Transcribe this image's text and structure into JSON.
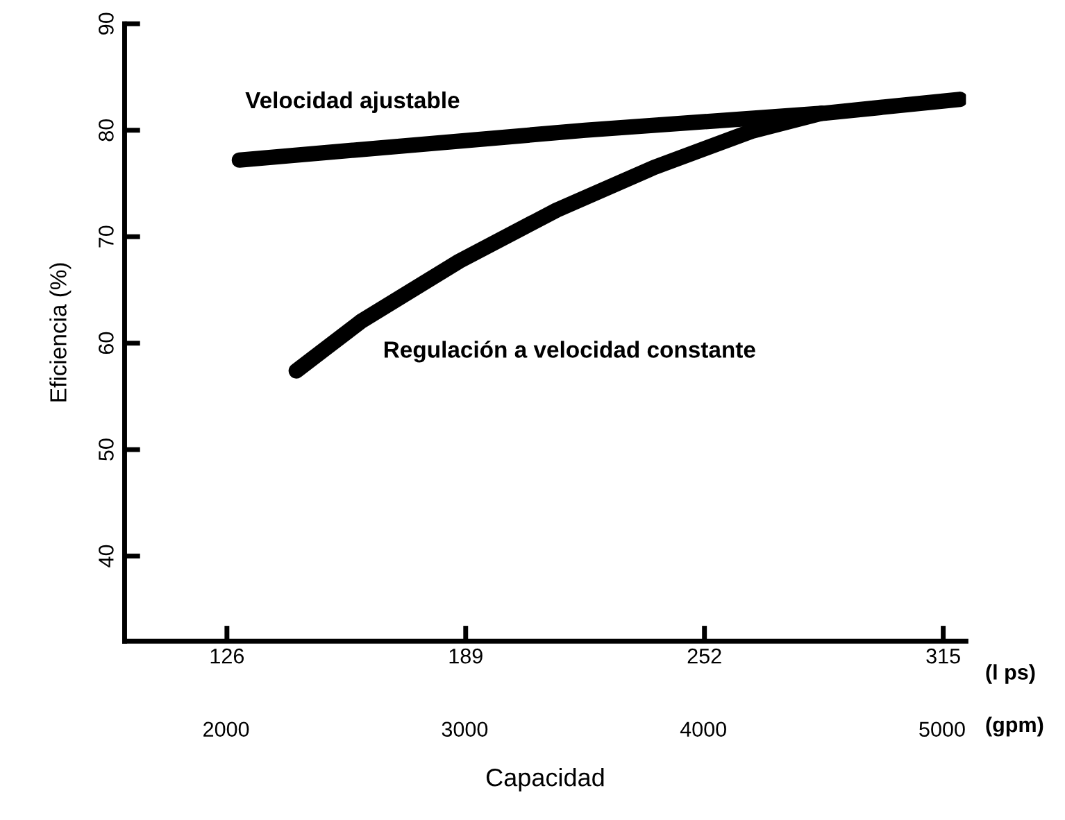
{
  "chart_data": {
    "type": "line",
    "xlabel": "Capacidad",
    "ylabel": "Eficiencia (%)",
    "xlim": [
      99,
      321
    ],
    "xticks": [
      126,
      189,
      252,
      315
    ],
    "x2lim": [
      1575,
      5100
    ],
    "x2ticks": [
      2000,
      3000,
      4000,
      5000
    ],
    "ylim": [
      32,
      90
    ],
    "yticks": [
      40,
      50,
      60,
      70,
      80,
      90
    ],
    "grid": false,
    "legend": false,
    "marker": "none",
    "line_style": "solid",
    "annotations": [
      "(l ps)",
      "(gpm)"
    ],
    "series": [
      {
        "name": "Velocidad ajustable",
        "color": "#000000",
        "x": [
          129.3,
          220.5,
          283.5,
          319.4
        ],
        "values": [
          77.2,
          80.0,
          81.6,
          82.9
        ]
      },
      {
        "name": "Regulación a velocidad constante",
        "color": "#000000",
        "x": [
          144.3,
          161.6,
          187.3,
          213.0,
          238.7,
          264.4,
          282.9
        ],
        "values": [
          57.4,
          62.1,
          67.7,
          72.5,
          76.5,
          79.9,
          81.6
        ]
      }
    ]
  }
}
